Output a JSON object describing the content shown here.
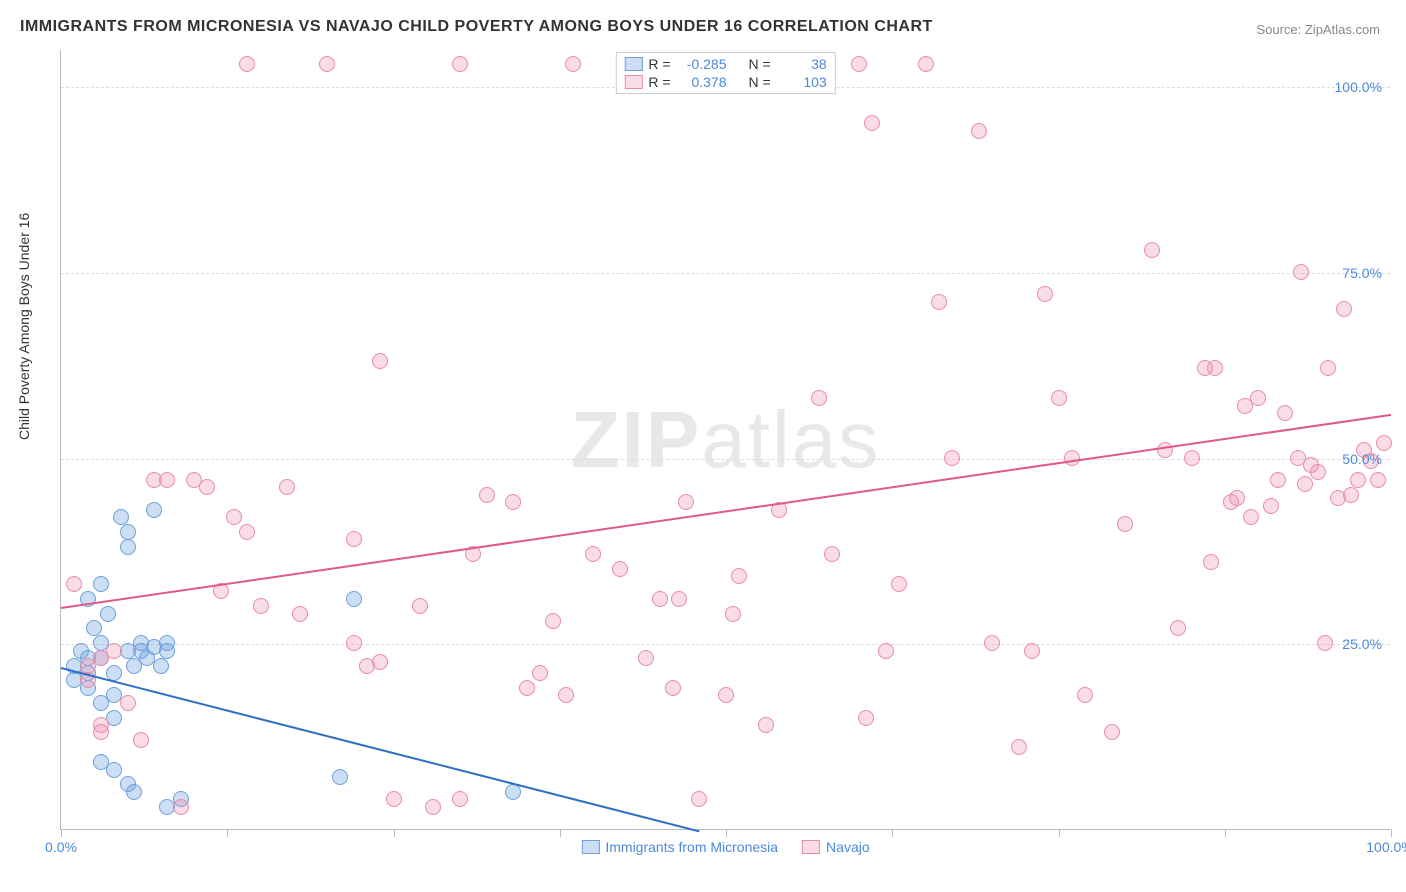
{
  "title": "IMMIGRANTS FROM MICRONESIA VS NAVAJO CHILD POVERTY AMONG BOYS UNDER 16 CORRELATION CHART",
  "source": "Source: ZipAtlas.com",
  "ylabel": "Child Poverty Among Boys Under 16",
  "watermark_bold": "ZIP",
  "watermark_thin": "atlas",
  "axis": {
    "x_min": 0,
    "x_max": 100,
    "y_min": 0,
    "y_max": 105,
    "y_ticks": [
      25,
      50,
      75,
      100
    ],
    "y_tick_labels": [
      "25.0%",
      "50.0%",
      "75.0%",
      "100.0%"
    ],
    "x_ticks": [
      0,
      12.5,
      25,
      37.5,
      50,
      62.5,
      75,
      87.5,
      100
    ],
    "x_start_label": "0.0%",
    "x_end_label": "100.0%",
    "grid_color": "#dddddd",
    "tick_color": "#bbbbbb",
    "label_color": "#4b89dc",
    "label_fontsize": 14
  },
  "series": [
    {
      "name": "Immigrants from Micronesia",
      "fill": "rgba(108,160,220,0.35)",
      "stroke": "#6ca0dc",
      "trend_color": "#2f6fc4",
      "R": "-0.285",
      "N": "38",
      "trend": {
        "x1": 0,
        "y1": 22,
        "x2": 48,
        "y2": 0
      },
      "points": [
        [
          1,
          22
        ],
        [
          1,
          20
        ],
        [
          1.5,
          24
        ],
        [
          2,
          23
        ],
        [
          2,
          19
        ],
        [
          2,
          21
        ],
        [
          2.5,
          27
        ],
        [
          3,
          25
        ],
        [
          3,
          23
        ],
        [
          3,
          17
        ],
        [
          3.5,
          29
        ],
        [
          4,
          21
        ],
        [
          4,
          18
        ],
        [
          4,
          15
        ],
        [
          4.5,
          42
        ],
        [
          5,
          40
        ],
        [
          5,
          38
        ],
        [
          5,
          24
        ],
        [
          5.5,
          22
        ],
        [
          6,
          25
        ],
        [
          6,
          24
        ],
        [
          6.5,
          23
        ],
        [
          7,
          43
        ],
        [
          7,
          24.5
        ],
        [
          7.5,
          22
        ],
        [
          8,
          25
        ],
        [
          8,
          24
        ],
        [
          3,
          9
        ],
        [
          4,
          8
        ],
        [
          5,
          6
        ],
        [
          5.5,
          5
        ],
        [
          8,
          3
        ],
        [
          9,
          4
        ],
        [
          21,
          7
        ],
        [
          22,
          31
        ],
        [
          34,
          5
        ],
        [
          2,
          31
        ],
        [
          3,
          33
        ]
      ]
    },
    {
      "name": "Navajo",
      "fill": "rgba(240,140,170,0.30)",
      "stroke": "#e88ca8",
      "trend_color": "#e05a88",
      "R": "0.378",
      "N": "103",
      "trend": {
        "x1": 0,
        "y1": 30,
        "x2": 100,
        "y2": 56
      },
      "points": [
        [
          1,
          33
        ],
        [
          2,
          22
        ],
        [
          2,
          20
        ],
        [
          3,
          13
        ],
        [
          3,
          14
        ],
        [
          3,
          23
        ],
        [
          4,
          24
        ],
        [
          5,
          17
        ],
        [
          6,
          12
        ],
        [
          7,
          47
        ],
        [
          8,
          47
        ],
        [
          9,
          3
        ],
        [
          10,
          47
        ],
        [
          11,
          46
        ],
        [
          12,
          32
        ],
        [
          13,
          42
        ],
        [
          14,
          40
        ],
        [
          14,
          103
        ],
        [
          15,
          30
        ],
        [
          17,
          46
        ],
        [
          18,
          29
        ],
        [
          20,
          103
        ],
        [
          22,
          25
        ],
        [
          22,
          39
        ],
        [
          23,
          22
        ],
        [
          24,
          22.5
        ],
        [
          24,
          63
        ],
        [
          25,
          4
        ],
        [
          27,
          30
        ],
        [
          28,
          3
        ],
        [
          30,
          103
        ],
        [
          30,
          4
        ],
        [
          31,
          37
        ],
        [
          32,
          45
        ],
        [
          34,
          44
        ],
        [
          35,
          19
        ],
        [
          36,
          21
        ],
        [
          37,
          28
        ],
        [
          38,
          18
        ],
        [
          38.5,
          103
        ],
        [
          40,
          37
        ],
        [
          42,
          35
        ],
        [
          44,
          23
        ],
        [
          45,
          31
        ],
        [
          46,
          19
        ],
        [
          46.5,
          31
        ],
        [
          47,
          44
        ],
        [
          48,
          4
        ],
        [
          50,
          18
        ],
        [
          50.5,
          29
        ],
        [
          51,
          34
        ],
        [
          53,
          14
        ],
        [
          54,
          43
        ],
        [
          57,
          58
        ],
        [
          58,
          37
        ],
        [
          60,
          103
        ],
        [
          60.5,
          15
        ],
        [
          61,
          95
        ],
        [
          62,
          24
        ],
        [
          63,
          33
        ],
        [
          65,
          103
        ],
        [
          66,
          71
        ],
        [
          67,
          50
        ],
        [
          69,
          94
        ],
        [
          70,
          25
        ],
        [
          72,
          11
        ],
        [
          73,
          24
        ],
        [
          74,
          72
        ],
        [
          75,
          58
        ],
        [
          76,
          50
        ],
        [
          77,
          18
        ],
        [
          79,
          13
        ],
        [
          80,
          41
        ],
        [
          82,
          78
        ],
        [
          83,
          51
        ],
        [
          84,
          27
        ],
        [
          85,
          50
        ],
        [
          86,
          62
        ],
        [
          86.5,
          36
        ],
        [
          86.8,
          62
        ],
        [
          88,
          44
        ],
        [
          88.4,
          44.5
        ],
        [
          89,
          57
        ],
        [
          89.5,
          42
        ],
        [
          90,
          58
        ],
        [
          91,
          43.5
        ],
        [
          91.5,
          47
        ],
        [
          92,
          56
        ],
        [
          93,
          50
        ],
        [
          93.2,
          75
        ],
        [
          93.5,
          46.5
        ],
        [
          94,
          49
        ],
        [
          94.5,
          48
        ],
        [
          95,
          25
        ],
        [
          95.3,
          62
        ],
        [
          96,
          44.5
        ],
        [
          96.5,
          70
        ],
        [
          97,
          45
        ],
        [
          97.5,
          47
        ],
        [
          98,
          51
        ],
        [
          98.5,
          49.5
        ],
        [
          99,
          47
        ],
        [
          99.5,
          52
        ]
      ]
    }
  ],
  "legend": {
    "series1_label": "Immigrants from Micronesia",
    "series2_label": "Navajo",
    "r_label": "R =",
    "n_label": "N ="
  }
}
